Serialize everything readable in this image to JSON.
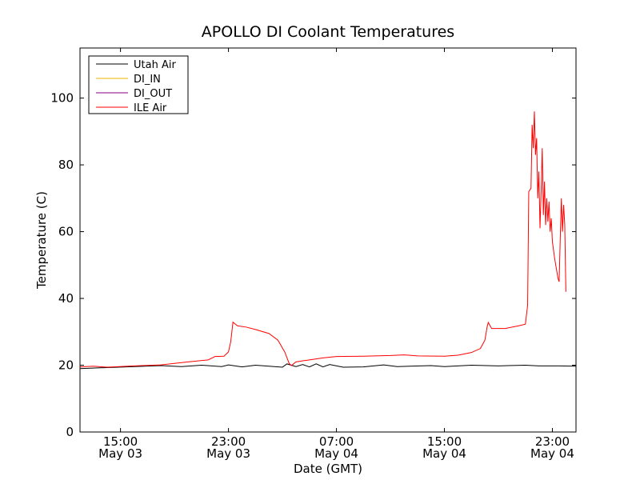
{
  "chart_data": {
    "type": "line",
    "title": "APOLLO DI Coolant Temperatures",
    "xlabel": "Date (GMT)",
    "ylabel": "Temperature (C)",
    "ylim": [
      0,
      115
    ],
    "yticks": [
      0,
      20,
      40,
      60,
      80,
      100
    ],
    "xlim": [
      "2013-05-03 12:00",
      "2013-05-05 00:45"
    ],
    "xticks": [
      {
        "time": "2013-05-03 15:00",
        "line1": "15:00",
        "line2": "May 03"
      },
      {
        "time": "2013-05-03 23:00",
        "line1": "23:00",
        "line2": "May 03"
      },
      {
        "time": "2013-05-04 07:00",
        "line1": "07:00",
        "line2": "May 04"
      },
      {
        "time": "2013-05-04 15:00",
        "line1": "15:00",
        "line2": "May 04"
      },
      {
        "time": "2013-05-04 23:00",
        "line1": "23:00",
        "line2": "May 04"
      }
    ],
    "grid": false,
    "legend_position": "top-left",
    "series": [
      {
        "name": "Utah Air",
        "color": "#000000",
        "points": [
          [
            "2013-05-03 12:00",
            19.0
          ],
          [
            "2013-05-03 14:00",
            19.3
          ],
          [
            "2013-05-03 16:00",
            19.6
          ],
          [
            "2013-05-03 18:00",
            19.9
          ],
          [
            "2013-05-03 19:30",
            19.6
          ],
          [
            "2013-05-03 21:00",
            20.0
          ],
          [
            "2013-05-03 22:30",
            19.6
          ],
          [
            "2013-05-03 23:00",
            20.1
          ],
          [
            "2013-05-04 00:00",
            19.5
          ],
          [
            "2013-05-04 01:00",
            20.0
          ],
          [
            "2013-05-04 03:00",
            19.4
          ],
          [
            "2013-05-04 03:20",
            20.4
          ],
          [
            "2013-05-04 04:00",
            19.6
          ],
          [
            "2013-05-04 04:30",
            20.2
          ],
          [
            "2013-05-04 05:00",
            19.5
          ],
          [
            "2013-05-04 05:30",
            20.4
          ],
          [
            "2013-05-04 06:00",
            19.5
          ],
          [
            "2013-05-04 06:30",
            20.2
          ],
          [
            "2013-05-04 07:30",
            19.4
          ],
          [
            "2013-05-04 09:00",
            19.5
          ],
          [
            "2013-05-04 10:30",
            20.1
          ],
          [
            "2013-05-04 11:30",
            19.6
          ],
          [
            "2013-05-04 14:00",
            19.9
          ],
          [
            "2013-05-04 15:00",
            19.6
          ],
          [
            "2013-05-04 17:00",
            20.0
          ],
          [
            "2013-05-04 19:00",
            19.8
          ],
          [
            "2013-05-04 21:00",
            20.0
          ],
          [
            "2013-05-04 22:00",
            19.8
          ],
          [
            "2013-05-04 23:30",
            19.8
          ],
          [
            "2013-05-05 00:45",
            19.7
          ]
        ]
      },
      {
        "name": "DI_IN",
        "color": "#e8b400",
        "points": []
      },
      {
        "name": "DI_OUT",
        "color": "#800080",
        "points": []
      },
      {
        "name": "ILE Air",
        "color": "#ff0000",
        "points": [
          [
            "2013-05-03 12:00",
            19.5
          ],
          [
            "2013-05-03 13:00",
            19.7
          ],
          [
            "2013-05-03 14:00",
            19.4
          ],
          [
            "2013-05-03 16:00",
            19.8
          ],
          [
            "2013-05-03 18:00",
            20.1
          ],
          [
            "2013-05-03 20:00",
            21.0
          ],
          [
            "2013-05-03 21:30",
            21.6
          ],
          [
            "2013-05-03 22:00",
            22.6
          ],
          [
            "2013-05-03 22:40",
            22.7
          ],
          [
            "2013-05-03 23:00",
            24.0
          ],
          [
            "2013-05-03 23:10",
            27.0
          ],
          [
            "2013-05-03 23:20",
            32.9
          ],
          [
            "2013-05-03 23:40",
            31.8
          ],
          [
            "2013-05-04 00:20",
            31.4
          ],
          [
            "2013-05-04 01:00",
            30.7
          ],
          [
            "2013-05-04 02:00",
            29.5
          ],
          [
            "2013-05-04 02:40",
            27.5
          ],
          [
            "2013-05-04 03:10",
            24.0
          ],
          [
            "2013-05-04 03:30",
            20.5
          ],
          [
            "2013-05-04 03:40",
            19.9
          ],
          [
            "2013-05-04 04:00",
            21.0
          ],
          [
            "2013-05-04 05:00",
            21.6
          ],
          [
            "2013-05-04 06:00",
            22.2
          ],
          [
            "2013-05-04 07:00",
            22.6
          ],
          [
            "2013-05-04 09:00",
            22.7
          ],
          [
            "2013-05-04 11:00",
            22.9
          ],
          [
            "2013-05-04 12:00",
            23.1
          ],
          [
            "2013-05-04 13:00",
            22.8
          ],
          [
            "2013-05-04 15:00",
            22.7
          ],
          [
            "2013-05-04 16:00",
            23.0
          ],
          [
            "2013-05-04 17:00",
            23.8
          ],
          [
            "2013-05-04 17:40",
            25.0
          ],
          [
            "2013-05-04 18:00",
            27.5
          ],
          [
            "2013-05-04 18:10",
            31.5
          ],
          [
            "2013-05-04 18:15",
            32.8
          ],
          [
            "2013-05-04 18:30",
            31.0
          ],
          [
            "2013-05-04 19:30",
            31.0
          ],
          [
            "2013-05-04 20:30",
            31.8
          ],
          [
            "2013-05-04 21:00",
            32.3
          ],
          [
            "2013-05-04 21:10",
            38.0
          ],
          [
            "2013-05-04 21:15",
            72.0
          ],
          [
            "2013-05-04 21:25",
            73.0
          ],
          [
            "2013-05-04 21:30",
            92.0
          ],
          [
            "2013-05-04 21:35",
            85.0
          ],
          [
            "2013-05-04 21:40",
            96.0
          ],
          [
            "2013-05-04 21:45",
            83.0
          ],
          [
            "2013-05-04 21:50",
            88.0
          ],
          [
            "2013-05-04 21:55",
            70.0
          ],
          [
            "2013-05-04 22:00",
            78.0
          ],
          [
            "2013-05-04 22:05",
            61.0
          ],
          [
            "2013-05-04 22:10",
            72.0
          ],
          [
            "2013-05-04 22:15",
            85.0
          ],
          [
            "2013-05-04 22:20",
            65.0
          ],
          [
            "2013-05-04 22:25",
            75.0
          ],
          [
            "2013-05-04 22:30",
            62.0
          ],
          [
            "2013-05-04 22:35",
            70.0
          ],
          [
            "2013-05-04 22:40",
            63.0
          ],
          [
            "2013-05-04 22:45",
            69.0
          ],
          [
            "2013-05-04 22:50",
            60.0
          ],
          [
            "2013-05-04 22:55",
            64.0
          ],
          [
            "2013-05-04 23:00",
            57.0
          ],
          [
            "2013-05-04 23:10",
            52.0
          ],
          [
            "2013-05-04 23:20",
            48.0
          ],
          [
            "2013-05-04 23:25",
            46.0
          ],
          [
            "2013-05-04 23:30",
            45.0
          ],
          [
            "2013-05-04 23:35",
            58.0
          ],
          [
            "2013-05-04 23:40",
            70.0
          ],
          [
            "2013-05-04 23:45",
            60.0
          ],
          [
            "2013-05-04 23:50",
            68.0
          ],
          [
            "2013-05-04 23:55",
            62.0
          ],
          [
            "2013-05-05 00:00",
            42.0
          ]
        ]
      }
    ]
  }
}
